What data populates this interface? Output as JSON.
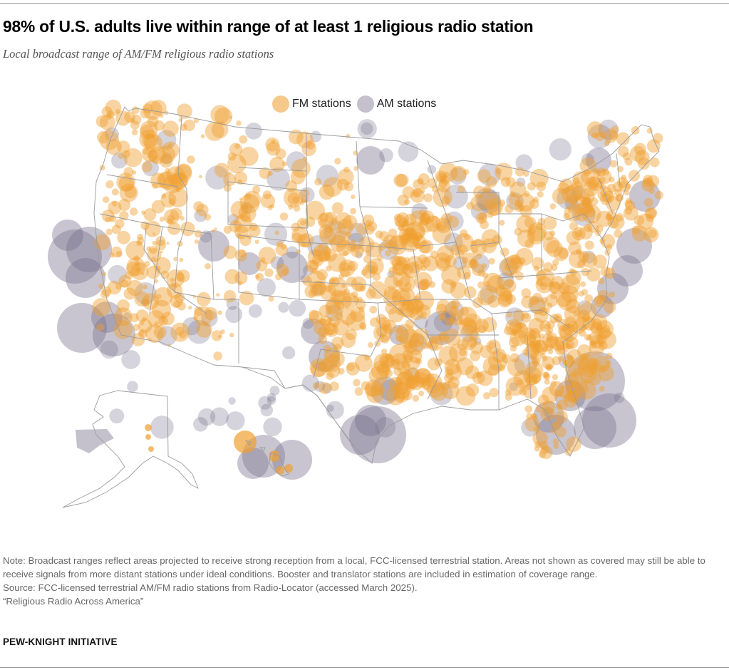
{
  "header": {
    "title": "98% of U.S. adults live within range of at least 1 religious radio station",
    "subtitle": "Local broadcast range of AM/FM religious radio stations"
  },
  "legend": {
    "items": [
      {
        "label": "FM stations",
        "color": "#f5c98a"
      },
      {
        "label": "AM stations",
        "color": "#c4c1cc"
      }
    ]
  },
  "colors": {
    "fm_fill": "#f0a030",
    "fm_opacity": 0.45,
    "am_fill": "#7c7590",
    "am_opacity": 0.42,
    "border": "#9b9b9b"
  },
  "footer": {
    "note": "Note: Broadcast ranges reflect areas projected to receive strong reception from a local, FCC-licensed terrestrial station. Areas not shown as covered may still be able to receive signals from more distant stations under ideal conditions. Booster and translator stations are included in estimation of coverage range.",
    "source": "Source: FCC-licensed terrestrial AM/FM radio stations from Radio-Locator (accessed March 2025).",
    "report": "“Religious Radio Across America”",
    "brand": "PEW-KNIGHT INITIATIVE"
  },
  "chart_data": {
    "type": "map",
    "title": "98% of U.S. adults live within range of at least 1 religious radio station",
    "subtitle": "Local broadcast range of AM/FM religious radio stations",
    "legend": [
      "FM stations",
      "AM stations"
    ],
    "headline_stat": {
      "share_of_us_adults_in_range_pct": 98
    },
    "regions_shown": [
      "Contiguous U.S.",
      "Alaska",
      "Hawaii"
    ],
    "am_large_coverage_areas": [
      "Pacific coast (Oregon/Northern California)",
      "Southern California",
      "Gulf coast of Texas/Louisiana",
      "Florida Atlantic & Gulf coasts",
      "Mid-Atlantic/Northeast coast",
      "Hawaii"
    ],
    "fm_density": "Densest in the eastern half of the U.S.; sparse in the interior West, Nevada and Alaska"
  }
}
